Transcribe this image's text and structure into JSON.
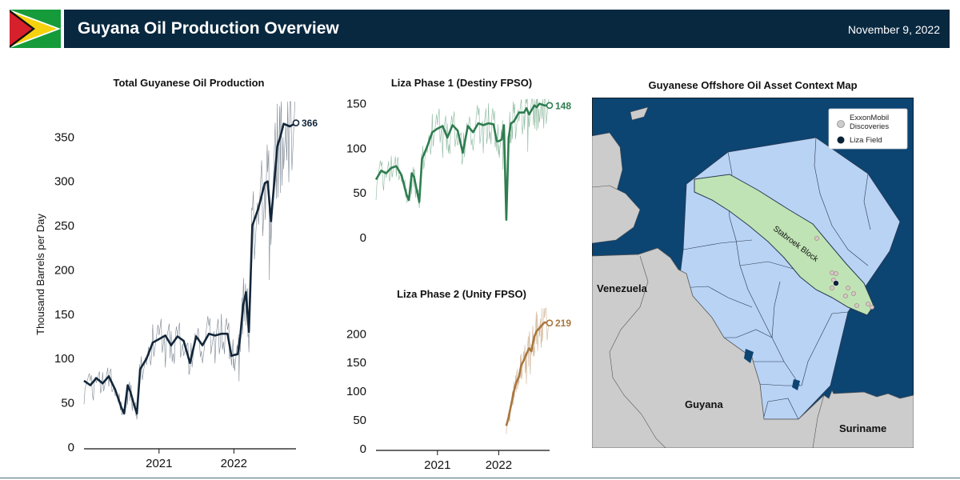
{
  "header": {
    "title": "Guyana Oil Production Overview",
    "date": "November 9, 2022"
  },
  "colors": {
    "banner": "#08283f",
    "total_series": "#12263a",
    "phase1_series": "#2e7d4f",
    "phase2_series": "#a8773f",
    "ocean": "#0c4472",
    "land": "#cccccc",
    "blocks": "#b9d3f5",
    "stabroek": "#bfe3b4"
  },
  "chart_data": [
    {
      "type": "line",
      "title": "Total Guyanese Oil Production",
      "xlabel": "",
      "ylabel": "Thousand Barrels per Day",
      "xlim": [
        "2020-01-01",
        "2022-10-31"
      ],
      "ylim": [
        0,
        390
      ],
      "x_ticks": [
        "2021",
        "2022"
      ],
      "y_ticks": [
        0,
        50,
        100,
        150,
        200,
        250,
        300,
        350
      ],
      "end_label": "366",
      "series": [
        {
          "x": [
            "2020-01-01",
            "2020-02-01",
            "2020-03-01",
            "2020-04-01",
            "2020-05-01",
            "2020-06-01",
            "2020-07-01",
            "2020-07-15",
            "2020-08-01",
            "2020-08-15",
            "2020-09-01",
            "2020-09-15",
            "2020-10-01",
            "2020-11-01",
            "2020-12-01",
            "2021-01-01",
            "2021-02-01",
            "2021-03-01",
            "2021-04-01",
            "2021-05-01",
            "2021-06-01",
            "2021-07-01",
            "2021-08-01",
            "2021-09-01",
            "2021-10-01",
            "2021-11-01",
            "2021-12-01",
            "2021-12-20",
            "2022-01-01",
            "2022-01-20",
            "2022-02-01",
            "2022-02-15",
            "2022-03-01",
            "2022-03-15",
            "2022-04-01",
            "2022-05-01",
            "2022-06-01",
            "2022-06-15",
            "2022-07-01",
            "2022-08-01",
            "2022-08-15",
            "2022-09-01",
            "2022-10-01",
            "2022-10-31"
          ],
          "values": [
            75,
            70,
            78,
            72,
            80,
            65,
            45,
            38,
            70,
            62,
            48,
            38,
            88,
            100,
            118,
            122,
            126,
            115,
            125,
            120,
            95,
            125,
            115,
            128,
            126,
            128,
            128,
            103,
            104,
            105,
            125,
            160,
            175,
            130,
            250,
            270,
            298,
            300,
            255,
            340,
            350,
            365,
            362,
            366
          ]
        }
      ]
    },
    {
      "type": "line",
      "title": "Liza Phase 1 (Destiny FPSO)",
      "xlabel": "",
      "ylabel": "",
      "xlim": [
        "2020-01-01",
        "2022-10-31"
      ],
      "ylim": [
        0,
        155
      ],
      "y_ticks": [
        0,
        50,
        100,
        150
      ],
      "end_label": "148",
      "series": [
        {
          "x": [
            "2020-01-01",
            "2020-02-01",
            "2020-03-01",
            "2020-04-01",
            "2020-05-01",
            "2020-06-01",
            "2020-07-01",
            "2020-07-15",
            "2020-08-01",
            "2020-08-15",
            "2020-09-01",
            "2020-09-15",
            "2020-10-01",
            "2020-11-01",
            "2020-12-01",
            "2021-01-01",
            "2021-02-01",
            "2021-03-01",
            "2021-04-01",
            "2021-05-01",
            "2021-06-01",
            "2021-07-01",
            "2021-08-01",
            "2021-09-01",
            "2021-10-01",
            "2021-11-01",
            "2021-12-01",
            "2021-12-20",
            "2022-01-01",
            "2022-01-20",
            "2022-02-01",
            "2022-02-15",
            "2022-03-01",
            "2022-03-15",
            "2022-04-01",
            "2022-05-01",
            "2022-06-01",
            "2022-06-15",
            "2022-07-01",
            "2022-08-01",
            "2022-08-15",
            "2022-09-01",
            "2022-10-01",
            "2022-10-31"
          ],
          "values": [
            65,
            75,
            72,
            78,
            80,
            70,
            48,
            42,
            72,
            68,
            52,
            40,
            88,
            102,
            118,
            122,
            125,
            112,
            126,
            120,
            95,
            125,
            118,
            128,
            126,
            128,
            127,
            108,
            108,
            110,
            126,
            20,
            112,
            128,
            130,
            140,
            140,
            145,
            138,
            148,
            146,
            150,
            148,
            148
          ]
        }
      ]
    },
    {
      "type": "line",
      "title": "Liza Phase 2 (Unity FPSO)",
      "xlabel": "",
      "ylabel": "",
      "xlim": [
        "2020-01-01",
        "2022-10-31"
      ],
      "ylim": [
        0,
        245
      ],
      "x_ticks": [
        "2021",
        "2022"
      ],
      "y_ticks": [
        0,
        50,
        100,
        150,
        200
      ],
      "end_label": "219",
      "series": [
        {
          "x": [
            "2022-02-15",
            "2022-03-01",
            "2022-03-15",
            "2022-04-01",
            "2022-04-15",
            "2022-05-01",
            "2022-05-15",
            "2022-06-01",
            "2022-06-15",
            "2022-07-01",
            "2022-07-15",
            "2022-08-01",
            "2022-08-15",
            "2022-09-01",
            "2022-09-15",
            "2022-10-01",
            "2022-10-31"
          ],
          "values": [
            40,
            55,
            75,
            100,
            115,
            125,
            145,
            155,
            165,
            175,
            170,
            195,
            205,
            210,
            215,
            220,
            219
          ]
        }
      ]
    }
  ],
  "map": {
    "title": "Guyanese Offshore Oil Asset Context Map",
    "block_label": "Stabroek Block",
    "land_labels": [
      "Venezuela",
      "Guyana",
      "Suriname"
    ],
    "legend": [
      "ExxonMobil Discoveries",
      "Liza Field"
    ]
  }
}
